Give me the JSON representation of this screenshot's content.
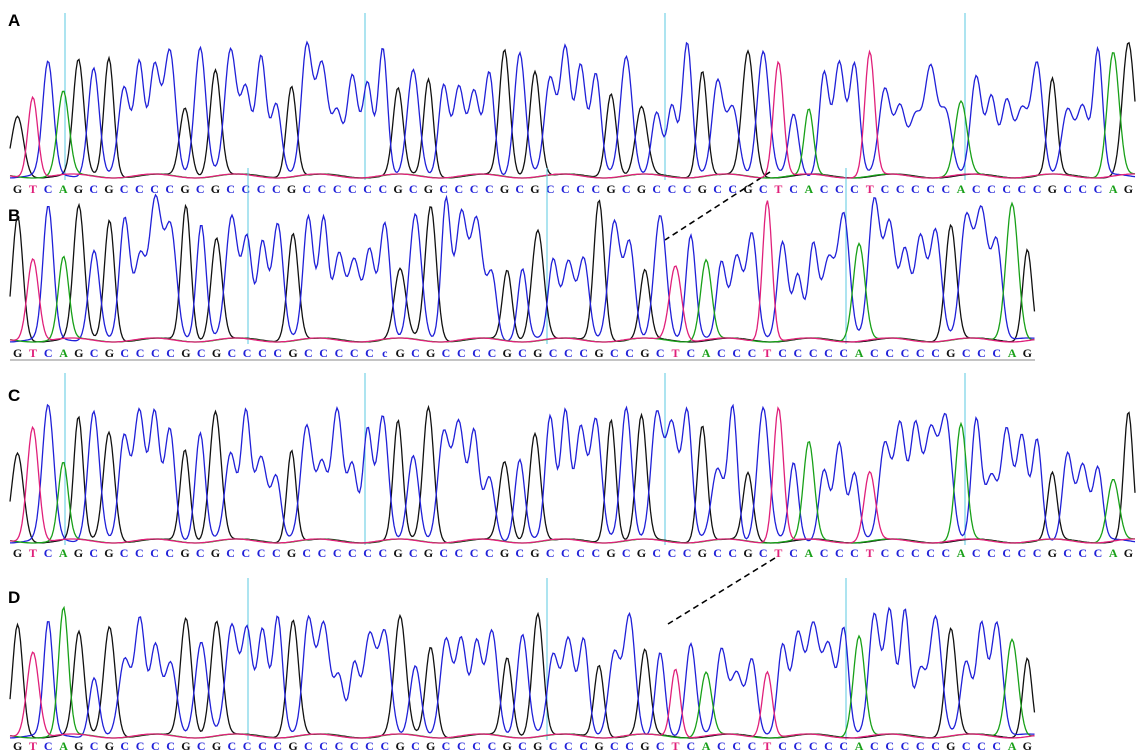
{
  "panels": [
    {
      "label": "A",
      "sequence": "GTCAGCGCCCCGCGCCCCGCCCCCCGCGCCCCGCGCCCCGCGCCCGCCGCTCACCCTCCCCCACCCCCGCCCAG"
    },
    {
      "label": "B",
      "sequence": "GTCAGCGCCCCGCGCCCCGCCCCCcGCGCCCCGCGCCCGCCGCTCACCCTCCCCCACCCCCGCCCAG"
    },
    {
      "label": "C",
      "sequence": "GTCAGCGCCCCGCGCCCCGCCCCCCGCGCCCCGCGCCCCGCGCCCGCCGCTCACCCTCCCCCACCCCCGCCCAG"
    },
    {
      "label": "D",
      "sequence": "GTCAGCGCCCCGCGCCCCGCCCCCCGCGCCCCGCGCCCGCCGCTCACCCTCCCCCACCCCCGCCCAG"
    }
  ]
}
